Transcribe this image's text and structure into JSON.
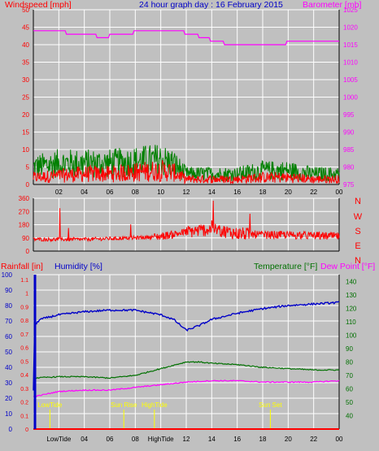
{
  "colors": {
    "background": "#c0c0c0",
    "grid": "#ffffff",
    "axis": "#000000",
    "wind_speed": "#ff0000",
    "wind_gust": "#008000",
    "barometer": "#ff00ff",
    "wind_direction": "#ff0000",
    "rainfall": "#ff0000",
    "humidity": "#0000c8",
    "temperature": "#007000",
    "dew_point": "#ff00ff",
    "markers": "#ffff00"
  },
  "chart_data": [
    {
      "id": "wind-barometer",
      "type": "line",
      "title": "24 hour graph day : 16 February 2015",
      "left_axis_label": "Windspeed [mph]",
      "right_axis_label": "Barometer [mb]",
      "left_ticks": [
        "0",
        "5",
        "10",
        "15",
        "20",
        "25",
        "30",
        "35",
        "40",
        "45",
        "50"
      ],
      "right_ticks": [
        "975",
        "980",
        "985",
        "990",
        "995",
        "1000",
        "1005",
        "1010",
        "1015",
        "1020",
        "1025"
      ],
      "x_ticks": [
        "02",
        "04",
        "06",
        "08",
        "10",
        "12",
        "14",
        "16",
        "18",
        "20",
        "22",
        "00"
      ],
      "ylim_left": [
        0,
        50
      ],
      "ylim_right": [
        975,
        1025
      ],
      "barometer": {
        "x_hours": [
          0,
          2.5,
          2.6,
          4.9,
          5.0,
          5.9,
          6.0,
          7.8,
          7.9,
          11.8,
          11.9,
          12.9,
          13.0,
          13.8,
          13.9,
          14.9,
          15.0,
          19.8,
          19.9,
          24
        ],
        "values": [
          1019,
          1019,
          1018,
          1018,
          1017,
          1017,
          1018,
          1018,
          1019,
          1019,
          1018,
          1018,
          1017,
          1017,
          1016,
          1016,
          1015,
          1015,
          1016,
          1016
        ]
      },
      "wind_speed": {
        "x_hours": [
          0,
          2,
          4,
          6,
          8,
          10,
          11,
          12,
          14,
          16,
          18,
          20,
          22,
          24
        ],
        "values": [
          2,
          2.5,
          3,
          3,
          3.5,
          4,
          3.5,
          1.5,
          1.5,
          1.5,
          2,
          2,
          1.5,
          1.5
        ]
      },
      "wind_gust": {
        "x_hours": [
          0,
          2,
          4,
          6,
          8,
          10,
          11,
          12,
          14,
          16,
          18,
          20,
          22,
          24
        ],
        "values": [
          5,
          6,
          6,
          6,
          6.5,
          7,
          6,
          3,
          3,
          3,
          4,
          4,
          3,
          3
        ]
      }
    },
    {
      "id": "wind-direction",
      "type": "line",
      "left_ticks": [
        "0",
        "90",
        "180",
        "270",
        "360"
      ],
      "ylim": [
        0,
        360
      ],
      "right_labels": [
        "N",
        "W",
        "S",
        "E",
        "N"
      ],
      "direction": {
        "x_hours": [
          0,
          4,
          8,
          10,
          12,
          14,
          16,
          18,
          20,
          22,
          24
        ],
        "values": [
          80,
          80,
          90,
          100,
          130,
          150,
          120,
          110,
          110,
          105,
          100
        ]
      }
    },
    {
      "id": "rain-humidity-temperature",
      "type": "line",
      "rainfall_label": "Rainfall [in]",
      "humidity_label": "Humidity [%]",
      "temperature_label": "Temperature [°F]",
      "dewpoint_label": "Dew Point [°F]",
      "humidity_ticks": [
        "0",
        "10",
        "20",
        "30",
        "40",
        "50",
        "60",
        "70",
        "80",
        "90",
        "100"
      ],
      "rain_ticks": [
        "0",
        "0.1",
        "0.2",
        "0.3",
        "0.4",
        "0.5",
        "0.6",
        "0.7",
        "0.8",
        "0.9",
        "1",
        "1.1"
      ],
      "temp_ticks": [
        "40",
        "50",
        "60",
        "70",
        "80",
        "90",
        "100",
        "110",
        "120",
        "130",
        "140"
      ],
      "x_ticks": [
        "LowTide",
        "04",
        "06",
        "08",
        "HighTide",
        "12",
        "14",
        "16",
        "18",
        "20",
        "22",
        "00"
      ],
      "ylim_humidity": [
        0,
        100
      ],
      "ylim_temp": [
        30,
        145
      ],
      "humidity": {
        "x_hours": [
          0,
          0.1,
          0.5,
          2,
          4,
          6,
          8,
          10,
          11,
          12,
          13,
          14,
          16,
          18,
          20,
          22,
          24
        ],
        "values": [
          25,
          67,
          71,
          74,
          76,
          77,
          77,
          74,
          71,
          64,
          67,
          71,
          75,
          78,
          80,
          81,
          82
        ]
      },
      "temperature": {
        "x_hours": [
          0,
          2,
          4,
          6,
          8,
          10,
          12,
          13,
          14,
          16,
          18,
          20,
          22,
          24
        ],
        "values": [
          68,
          69,
          69,
          68,
          70,
          75,
          80,
          80,
          79,
          78,
          76,
          75,
          74,
          74
        ]
      },
      "dew_point": {
        "x_hours": [
          0,
          1,
          2,
          4,
          6,
          8,
          10,
          12,
          14,
          16,
          18,
          20,
          22,
          24
        ],
        "values": [
          54,
          56,
          58,
          59,
          59,
          61,
          63,
          65,
          66,
          66,
          65,
          65,
          65,
          66
        ]
      },
      "rainfall": {
        "x_hours": [
          0,
          24
        ],
        "values": [
          0,
          0
        ]
      },
      "markers": [
        {
          "label": "LowTide",
          "hour": 1.3
        },
        {
          "label": "Sun Rise",
          "hour": 7.1
        },
        {
          "label": "HighTide",
          "hour": 9.5
        },
        {
          "label": "Sun Set",
          "hour": 18.6
        }
      ]
    }
  ]
}
